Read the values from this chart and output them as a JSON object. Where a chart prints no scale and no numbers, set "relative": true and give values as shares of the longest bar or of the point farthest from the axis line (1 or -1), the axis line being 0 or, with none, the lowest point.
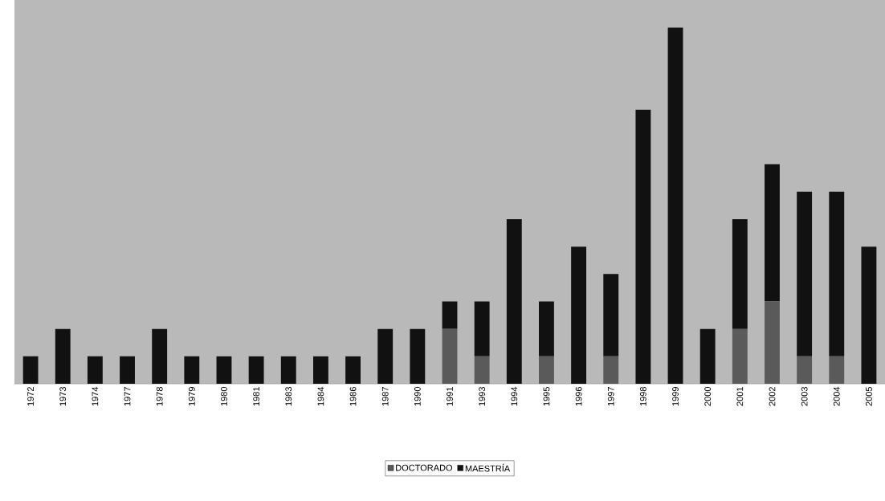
{
  "chart_data": {
    "type": "bar",
    "stacked": true,
    "relative": true,
    "legend": "bottom",
    "categories": [
      "1972",
      "1973",
      "1974",
      "1977",
      "1978",
      "1979",
      "1980",
      "1981",
      "1983",
      "1984",
      "1986",
      "1987",
      "1990",
      "1991",
      "1993",
      "1994",
      "1995",
      "1996",
      "1997",
      "1998",
      "1999",
      "2000",
      "2001",
      "2002",
      "2003",
      "2004",
      "2005"
    ],
    "series": [
      {
        "name": "DOCTORADO",
        "color": "#5a5a5a",
        "values": [
          0,
          0,
          0,
          0,
          0,
          0,
          0,
          0,
          0,
          0,
          0,
          0,
          0,
          0.154,
          0.077,
          0,
          0.077,
          0,
          0.077,
          0,
          0,
          0,
          0.154,
          0.231,
          0.077,
          0.077,
          0
        ]
      },
      {
        "name": "MAESTRÍA",
        "color": "#111111",
        "values": [
          0.077,
          0.154,
          0.077,
          0.077,
          0.154,
          0.077,
          0.077,
          0.077,
          0.077,
          0.077,
          0.077,
          0.154,
          0.154,
          0.077,
          0.154,
          0.462,
          0.154,
          0.385,
          0.231,
          0.769,
          1,
          0.154,
          0.308,
          0.385,
          0.462,
          0.462,
          0.385
        ]
      }
    ]
  }
}
